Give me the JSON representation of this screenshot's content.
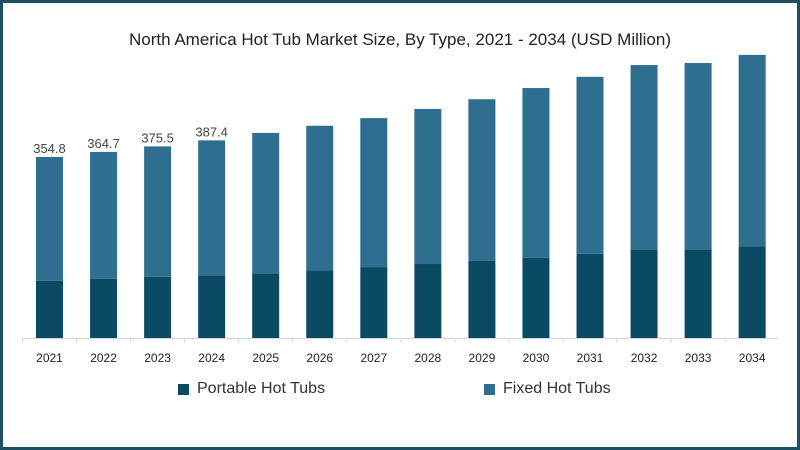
{
  "chart_data": {
    "type": "bar",
    "stacked": true,
    "title": "North America Hot Tub Market Size, By Type, 2021 - 2034 (USD Million)",
    "xlabel": "",
    "ylabel": "",
    "categories": [
      "2021",
      "2022",
      "2023",
      "2024",
      "2025",
      "2026",
      "2027",
      "2028",
      "2029",
      "2030",
      "2031",
      "2032",
      "2033",
      "2034"
    ],
    "series": [
      {
        "name": "Portable Hot Tubs",
        "color": "#0a4a63",
        "values": [
          112,
          116,
          120,
          123,
          127,
          133,
          139,
          145,
          151,
          157,
          165,
          174,
          174,
          180
        ]
      },
      {
        "name": "Fixed Hot Tubs",
        "color": "#2e6e8e",
        "values": [
          242.8,
          248.7,
          255.5,
          264.4,
          275,
          283,
          292,
          304,
          317,
          333,
          347,
          361,
          365,
          375
        ]
      }
    ],
    "data_labels": [
      "354.8",
      "364.7",
      "375.5",
      "387.4"
    ],
    "ylim": [
      0,
      620
    ],
    "grid": false,
    "legend_position": "bottom"
  }
}
